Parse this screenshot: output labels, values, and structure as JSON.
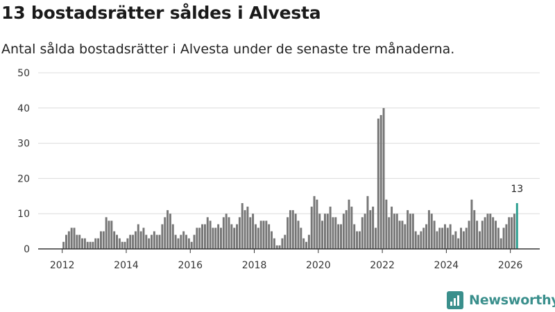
{
  "header": {
    "title": "13 bostadsrätter såldes i Alvesta",
    "subtitle": "Antal sålda bostadsrätter i Alvesta under de senaste tre månaderna."
  },
  "brand": {
    "name": "Newsworthy"
  },
  "colors": {
    "bar": "#767676",
    "highlight": "#2a9d8f",
    "grid": "#dcdcdc",
    "axis": "#333333",
    "brand": "#3a8f8c"
  },
  "chart_data": {
    "type": "bar",
    "x_start": "2012-01",
    "frequency": "monthly",
    "x_ticks": [
      "2012",
      "2014",
      "2016",
      "2018",
      "2020",
      "2022",
      "2024",
      "2026"
    ],
    "y_ticks": [
      0,
      10,
      20,
      30,
      40,
      50
    ],
    "ylim": [
      0,
      50
    ],
    "grid": true,
    "values": [
      2,
      4,
      5,
      6,
      6,
      4,
      4,
      3,
      3,
      2,
      2,
      2,
      3,
      3,
      5,
      5,
      9,
      8,
      8,
      5,
      4,
      3,
      2,
      2,
      3,
      4,
      4,
      5,
      7,
      5,
      6,
      4,
      3,
      4,
      5,
      4,
      4,
      7,
      9,
      11,
      10,
      7,
      4,
      3,
      4,
      5,
      4,
      3,
      2,
      4,
      6,
      6,
      7,
      7,
      9,
      8,
      6,
      6,
      7,
      6,
      9,
      10,
      9,
      7,
      6,
      7,
      9,
      13,
      11,
      12,
      9,
      10,
      7,
      6,
      8,
      8,
      8,
      7,
      5,
      3,
      1,
      1,
      3,
      4,
      9,
      11,
      11,
      10,
      8,
      6,
      3,
      2,
      4,
      12,
      15,
      14,
      10,
      8,
      10,
      10,
      12,
      9,
      9,
      7,
      7,
      10,
      11,
      14,
      12,
      7,
      5,
      5,
      9,
      10,
      15,
      11,
      12,
      6,
      37,
      38,
      40,
      14,
      9,
      12,
      10,
      10,
      8,
      8,
      7,
      11,
      10,
      10,
      5,
      4,
      5,
      6,
      7,
      11,
      10,
      8,
      5,
      6,
      6,
      7,
      6,
      7,
      4,
      5,
      3,
      6,
      5,
      6,
      8,
      14,
      11,
      8,
      5,
      8,
      9,
      10,
      10,
      9,
      8,
      6,
      3,
      6,
      7,
      9,
      9,
      10,
      13
    ],
    "highlight_index": 170,
    "annotation": "13"
  }
}
